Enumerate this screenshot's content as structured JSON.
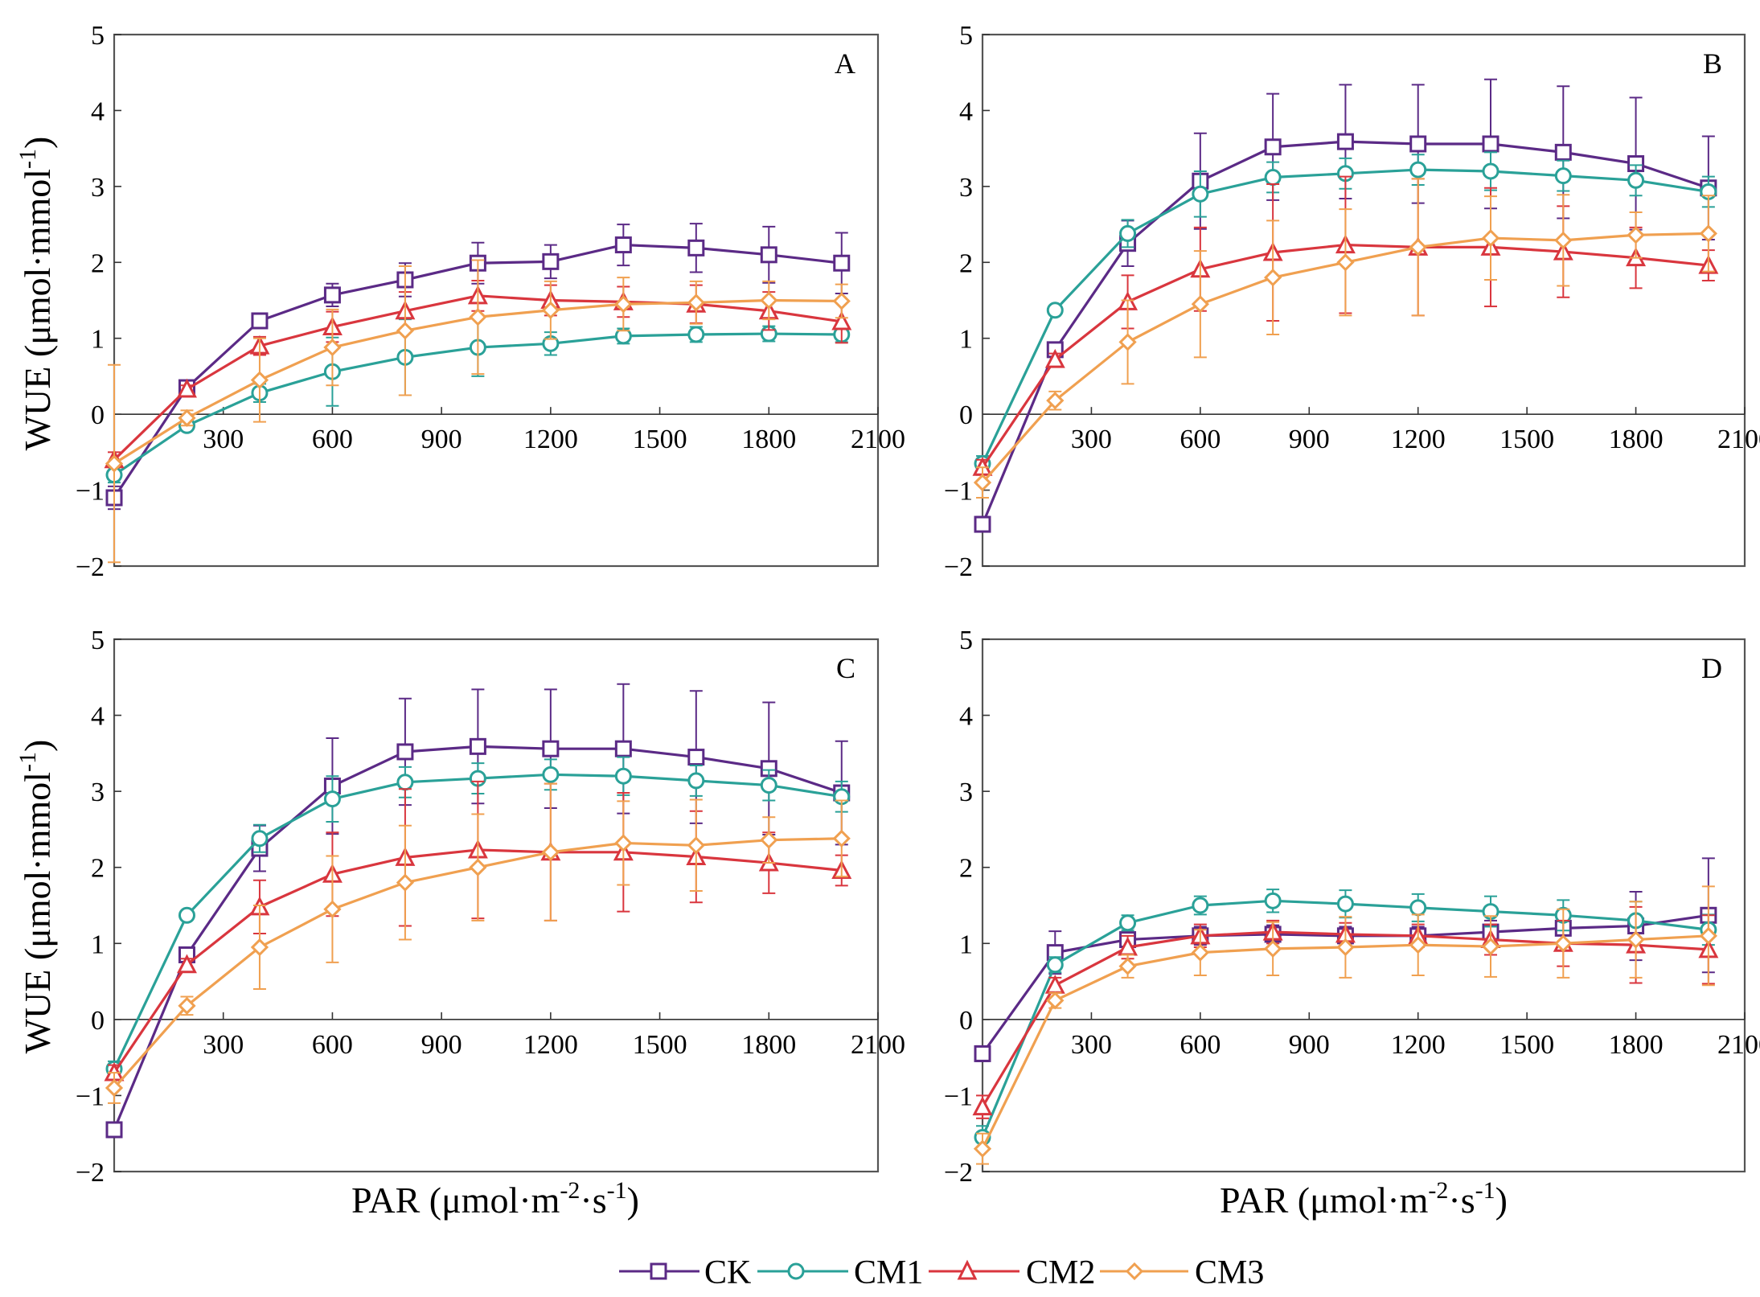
{
  "chart_data": {
    "type": "line",
    "xlabel": "PAR (μmol·m⁻²·s⁻¹)",
    "ylabel": "WUE (μmol·mmol⁻¹)",
    "xlabel_parts": {
      "main": "PAR (μmol·m",
      "sup1": "-2",
      "mid": "·s",
      "sup2": "-1",
      "end": ")"
    },
    "ylabel_parts": {
      "main": "WUE (μmol·mmol",
      "sup": "-1",
      "end": ")"
    },
    "x": [
      0,
      200,
      400,
      600,
      800,
      1000,
      1200,
      1400,
      1600,
      1800,
      2000
    ],
    "x_ticks": [
      300,
      600,
      900,
      1200,
      1500,
      1800,
      2100
    ],
    "y_ticks": [
      -2,
      -1,
      0,
      1,
      2,
      3,
      4,
      5
    ],
    "y_tick_labels": [
      "−2",
      "−1",
      "0",
      "1",
      "2",
      "3",
      "4",
      "5"
    ],
    "xlim": [
      0,
      2100
    ],
    "ylim": [
      -2,
      5
    ],
    "legend": [
      "CK",
      "CM1",
      "CM2",
      "CM3"
    ],
    "legend_position": "bottom-center",
    "colors": {
      "CK": "#5b2a86",
      "CM1": "#2aa198",
      "CM2": "#d9363e",
      "CM3": "#f0a050"
    },
    "panels": [
      {
        "label": "A",
        "series": [
          {
            "name": "CK",
            "values": [
              -1.1,
              0.35,
              1.23,
              1.57,
              1.77,
              1.99,
              2.01,
              2.23,
              2.19,
              2.1,
              1.99
            ],
            "errors": [
              0.15,
              0.05,
              0.1,
              0.15,
              0.22,
              0.27,
              0.22,
              0.27,
              0.32,
              0.37,
              0.4
            ]
          },
          {
            "name": "CM1",
            "values": [
              -0.8,
              -0.15,
              0.28,
              0.56,
              0.75,
              0.88,
              0.93,
              1.03,
              1.05,
              1.06,
              1.05
            ],
            "errors": [
              0.1,
              0.05,
              0.12,
              0.45,
              0.5,
              0.38,
              0.15,
              0.1,
              0.1,
              0.1,
              0.1
            ]
          },
          {
            "name": "CM2",
            "values": [
              -0.6,
              0.33,
              0.9,
              1.15,
              1.36,
              1.56,
              1.5,
              1.48,
              1.45,
              1.36,
              1.22
            ],
            "errors": [
              0.1,
              0.05,
              0.12,
              0.2,
              0.25,
              0.2,
              0.2,
              0.2,
              0.25,
              0.25,
              0.28
            ]
          },
          {
            "name": "CM3",
            "values": [
              -0.65,
              -0.05,
              0.45,
              0.88,
              1.1,
              1.28,
              1.37,
              1.45,
              1.47,
              1.5,
              1.49
            ],
            "errors": [
              1.3,
              0.1,
              0.55,
              0.5,
              0.85,
              0.75,
              0.38,
              0.35,
              0.28,
              0.25,
              0.22
            ]
          }
        ]
      },
      {
        "label": "B",
        "series": [
          {
            "name": "CK",
            "values": [
              -1.45,
              0.85,
              2.25,
              3.07,
              3.52,
              3.59,
              3.56,
              3.56,
              3.45,
              3.3,
              2.98
            ],
            "errors": [
              0.1,
              0.08,
              0.3,
              0.63,
              0.7,
              0.75,
              0.78,
              0.85,
              0.87,
              0.87,
              0.68
            ]
          },
          {
            "name": "CM1",
            "values": [
              -0.65,
              1.37,
              2.38,
              2.9,
              3.12,
              3.17,
              3.22,
              3.2,
              3.14,
              3.08,
              2.93
            ],
            "errors": [
              0.1,
              0.05,
              0.18,
              0.3,
              0.2,
              0.2,
              0.2,
              0.25,
              0.2,
              0.2,
              0.2
            ]
          },
          {
            "name": "CM2",
            "values": [
              -0.7,
              0.72,
              1.48,
              1.91,
              2.13,
              2.23,
              2.2,
              2.2,
              2.14,
              2.06,
              1.96
            ],
            "errors": [
              0.1,
              0.08,
              0.35,
              0.55,
              0.9,
              0.9,
              0.9,
              0.78,
              0.6,
              0.4,
              0.2
            ]
          },
          {
            "name": "CM3",
            "values": [
              -0.9,
              0.18,
              0.95,
              1.45,
              1.8,
              2.0,
              2.2,
              2.32,
              2.29,
              2.36,
              2.38
            ],
            "errors": [
              0.2,
              0.12,
              0.55,
              0.7,
              0.75,
              0.7,
              0.9,
              0.55,
              0.6,
              0.3,
              0.5
            ]
          }
        ]
      },
      {
        "label": "C",
        "series": [
          {
            "name": "CK",
            "values": [
              -1.45,
              0.85,
              2.25,
              3.07,
              3.52,
              3.59,
              3.56,
              3.56,
              3.45,
              3.3,
              2.98
            ],
            "errors": [
              0.1,
              0.08,
              0.3,
              0.63,
              0.7,
              0.75,
              0.78,
              0.85,
              0.87,
              0.87,
              0.68
            ]
          },
          {
            "name": "CM1",
            "values": [
              -0.65,
              1.37,
              2.38,
              2.9,
              3.12,
              3.17,
              3.22,
              3.2,
              3.14,
              3.08,
              2.93
            ],
            "errors": [
              0.1,
              0.05,
              0.18,
              0.3,
              0.2,
              0.2,
              0.2,
              0.25,
              0.2,
              0.2,
              0.2
            ]
          },
          {
            "name": "CM2",
            "values": [
              -0.7,
              0.72,
              1.48,
              1.91,
              2.13,
              2.23,
              2.2,
              2.2,
              2.14,
              2.06,
              1.96
            ],
            "errors": [
              0.1,
              0.08,
              0.35,
              0.55,
              0.9,
              0.9,
              0.9,
              0.78,
              0.6,
              0.4,
              0.2
            ]
          },
          {
            "name": "CM3",
            "values": [
              -0.9,
              0.18,
              0.95,
              1.45,
              1.8,
              2.0,
              2.2,
              2.32,
              2.29,
              2.36,
              2.38
            ],
            "errors": [
              0.2,
              0.12,
              0.55,
              0.7,
              0.75,
              0.7,
              0.9,
              0.55,
              0.6,
              0.3,
              0.5
            ]
          }
        ]
      },
      {
        "label": "D",
        "series": [
          {
            "name": "CK",
            "values": [
              -0.45,
              0.88,
              1.05,
              1.1,
              1.12,
              1.1,
              1.1,
              1.15,
              1.2,
              1.23,
              1.37
            ],
            "errors": [
              0.1,
              0.28,
              0.15,
              0.12,
              0.12,
              0.12,
              0.12,
              0.15,
              0.2,
              0.45,
              0.75
            ]
          },
          {
            "name": "CM1",
            "values": [
              -1.55,
              0.72,
              1.27,
              1.5,
              1.56,
              1.52,
              1.47,
              1.42,
              1.37,
              1.3,
              1.18
            ],
            "errors": [
              0.15,
              0.1,
              0.1,
              0.12,
              0.15,
              0.18,
              0.18,
              0.2,
              0.2,
              0.25,
              0.2
            ]
          },
          {
            "name": "CM2",
            "values": [
              -1.15,
              0.45,
              0.95,
              1.1,
              1.15,
              1.12,
              1.1,
              1.05,
              1.0,
              0.98,
              0.92
            ],
            "errors": [
              0.15,
              0.1,
              0.15,
              0.15,
              0.15,
              0.15,
              0.15,
              0.2,
              0.3,
              0.5,
              0.45
            ]
          },
          {
            "name": "CM3",
            "values": [
              -1.7,
              0.25,
              0.7,
              0.88,
              0.93,
              0.95,
              0.98,
              0.96,
              1.0,
              1.05,
              1.1
            ],
            "errors": [
              0.2,
              0.1,
              0.15,
              0.3,
              0.35,
              0.4,
              0.4,
              0.4,
              0.45,
              0.5,
              0.65
            ]
          }
        ]
      }
    ]
  }
}
